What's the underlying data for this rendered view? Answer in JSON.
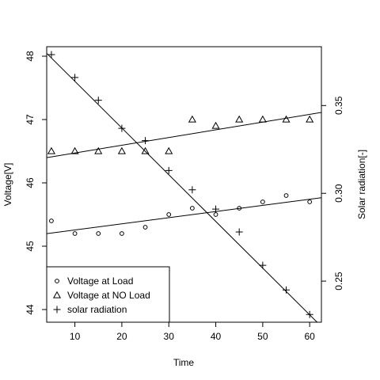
{
  "chart_data": {
    "type": "scatter",
    "xlabel": "Time",
    "ylabel": "Voltage[V]",
    "y2label": "Solar radiation[-]",
    "xlim": [
      4,
      62.5
    ],
    "ylim": [
      43.8,
      48.15
    ],
    "y2lim": [
      0.2266,
      0.3835
    ],
    "x_ticks": [
      10,
      20,
      30,
      40,
      50,
      60
    ],
    "y_ticks": [
      44,
      45,
      46,
      47,
      48
    ],
    "y2_ticks": [
      0.25,
      0.3,
      0.35
    ],
    "legend_position": "bottom-left",
    "series": [
      {
        "name": "Voltage at Load",
        "marker": "circle",
        "axis": "left",
        "x": [
          5,
          10,
          15,
          20,
          25,
          30,
          35,
          40,
          45,
          50,
          55,
          60
        ],
        "y": [
          45.4,
          45.2,
          45.2,
          45.2,
          45.3,
          45.5,
          45.6,
          45.5,
          45.6,
          45.7,
          45.8,
          45.7
        ],
        "fit": {
          "intercept": 45.16,
          "slope": 0.0097
        }
      },
      {
        "name": "Voltage at NO Load",
        "marker": "triangle",
        "axis": "left",
        "x": [
          5,
          10,
          15,
          20,
          25,
          30,
          35,
          40,
          45,
          50,
          55,
          60
        ],
        "y": [
          46.5,
          46.5,
          46.5,
          46.5,
          46.5,
          46.5,
          47.0,
          46.9,
          47.0,
          47.0,
          47.0,
          47.0
        ],
        "fit": {
          "intercept": 46.35,
          "slope": 0.0122
        }
      },
      {
        "name": "solar radiation",
        "marker": "plus",
        "axis": "right",
        "x": [
          5,
          10,
          15,
          20,
          25,
          30,
          35,
          40,
          45,
          50,
          55,
          60
        ],
        "y": [
          0.379,
          0.366,
          0.353,
          0.337,
          0.33,
          0.313,
          0.302,
          0.291,
          0.278,
          0.259,
          0.245,
          0.231
        ],
        "fit": {
          "intercept": 0.3904,
          "slope": -0.00266
        }
      }
    ]
  }
}
